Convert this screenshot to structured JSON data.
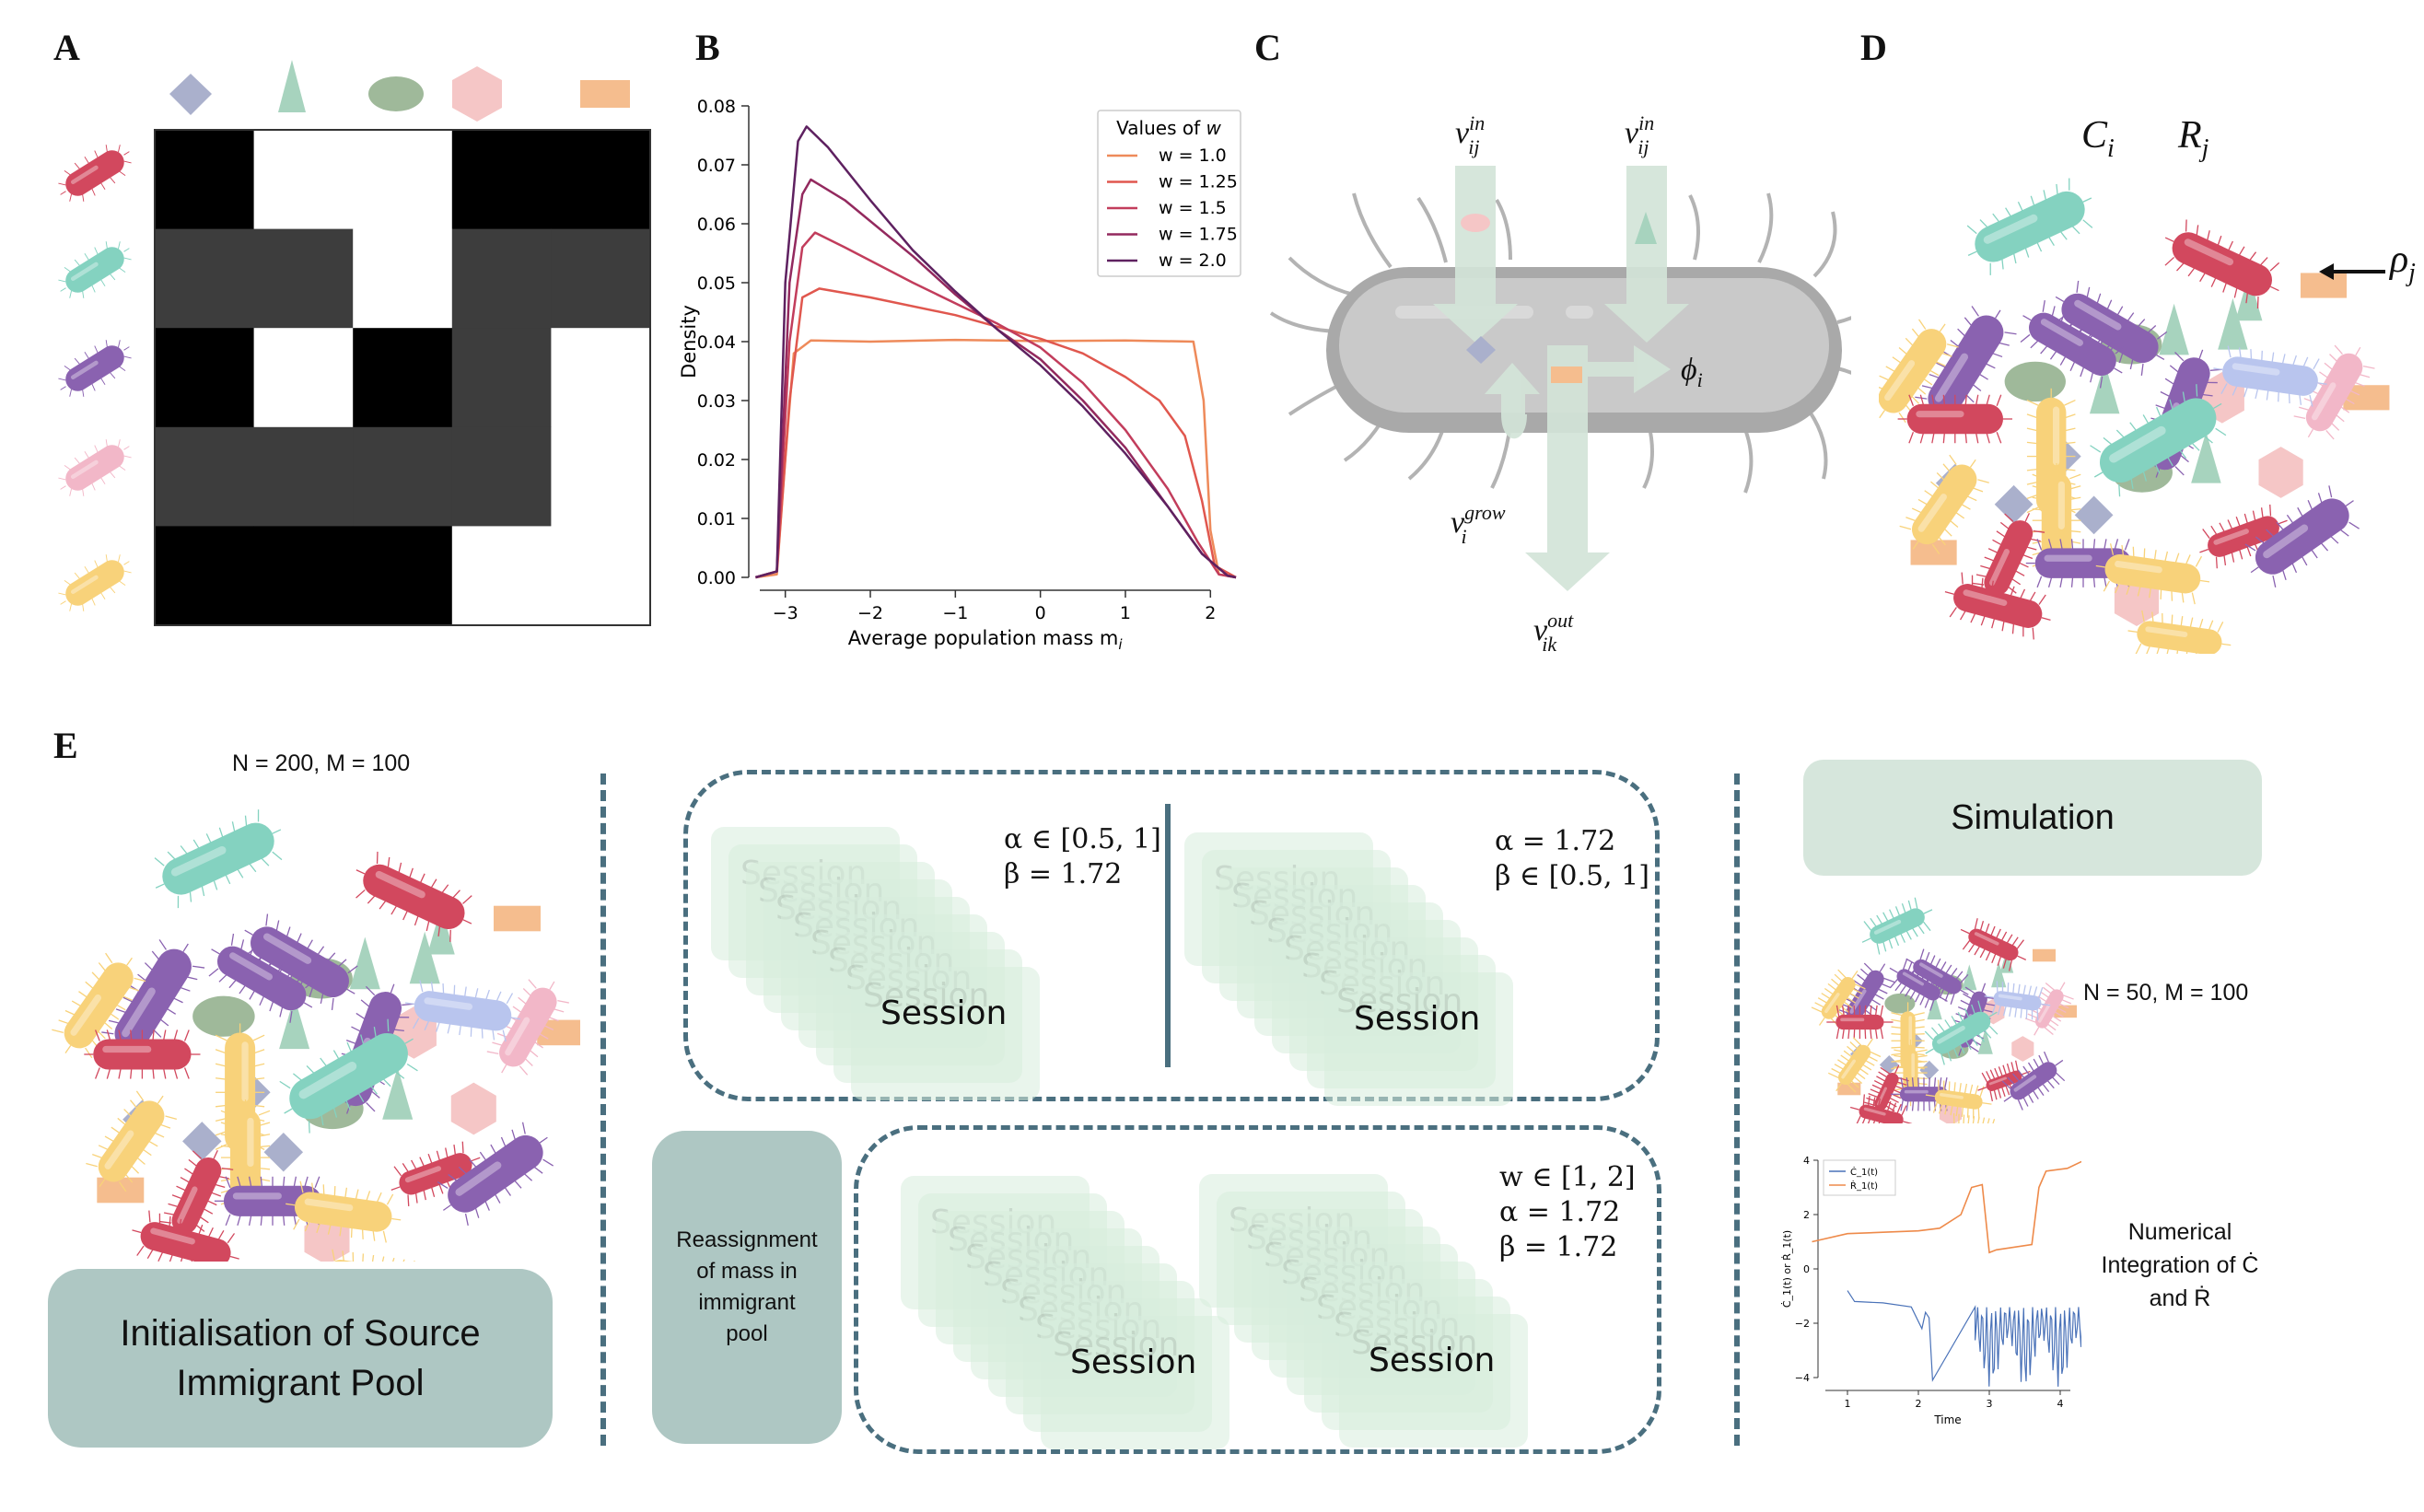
{
  "panels": {
    "A": "A",
    "B": "B",
    "C": "C",
    "D": "D",
    "E": "E"
  },
  "colors": {
    "red": "#d2485e",
    "teal": "#84d2c0",
    "purple": "#8a62b0",
    "pink": "#f2b7c8",
    "yellow": "#f8d27a",
    "lavender": "#b9c5ee",
    "diamond": "#aab0cc",
    "triangle": "#a7d3be",
    "ellipse": "#9fb99a",
    "hexagon": "#f5c6c6",
    "rect": "#f5bd8e",
    "box_green": "#d6e6dc",
    "box_teal": "#aec7c3",
    "dash": "#4a6f7f"
  },
  "panel_a": {
    "row_icons": [
      "red-bacterium-icon",
      "teal-bacterium-icon",
      "purple-bacterium-icon",
      "pink-bacterium-icon",
      "yellow-bacterium-icon"
    ],
    "col_icons": [
      "diamond-icon",
      "triangle-icon",
      "ellipse-icon",
      "hexagon-icon",
      "rectangle-icon"
    ],
    "matrix": [
      [
        0,
        1,
        1,
        0,
        0
      ],
      [
        0.3,
        0.3,
        1,
        0.3,
        0.3
      ],
      [
        0,
        1,
        0,
        0.3,
        1
      ],
      [
        0.3,
        0.3,
        0.3,
        0.3,
        1
      ],
      [
        0,
        0,
        0,
        1,
        1
      ]
    ],
    "matrix_legend": "0 = black, 0.3 = dark grey, 1 = white"
  },
  "chart_data": {
    "type": "line",
    "title": "",
    "xlabel": "Average population mass m",
    "xlabel_subscript": "i",
    "ylabel": "Density",
    "xlim": [
      -3.3,
      2.3
    ],
    "ylim": [
      0,
      0.08
    ],
    "xticks": [
      "−3",
      "−2",
      "−1",
      "0",
      "1",
      "2"
    ],
    "yticks": [
      "0.00",
      "0.01",
      "0.02",
      "0.03",
      "0.04",
      "0.05",
      "0.06",
      "0.07",
      "0.08"
    ],
    "legend_title": "Values of w",
    "legend_position": "top-right",
    "series": [
      {
        "name": "w = 1.0",
        "color": "#ee8a5a",
        "points": [
          [
            -3.35,
            0
          ],
          [
            -3.1,
            0.0005
          ],
          [
            -3.0,
            0.02
          ],
          [
            -2.9,
            0.038
          ],
          [
            -2.7,
            0.0402
          ],
          [
            -2,
            0.04
          ],
          [
            -1,
            0.0403
          ],
          [
            0,
            0.0401
          ],
          [
            1,
            0.0402
          ],
          [
            1.8,
            0.04
          ],
          [
            1.92,
            0.03
          ],
          [
            2.0,
            0.008
          ],
          [
            2.1,
            0.0005
          ],
          [
            2.3,
            0
          ]
        ]
      },
      {
        "name": "w = 1.25",
        "color": "#e0574e",
        "points": [
          [
            -3.35,
            0
          ],
          [
            -3.1,
            0.001
          ],
          [
            -2.95,
            0.03
          ],
          [
            -2.8,
            0.0475
          ],
          [
            -2.6,
            0.049
          ],
          [
            -2,
            0.0475
          ],
          [
            -1,
            0.0445
          ],
          [
            0,
            0.0405
          ],
          [
            0.5,
            0.038
          ],
          [
            1,
            0.034
          ],
          [
            1.4,
            0.03
          ],
          [
            1.7,
            0.024
          ],
          [
            1.9,
            0.013
          ],
          [
            2.05,
            0.002
          ],
          [
            2.3,
            0
          ]
        ]
      },
      {
        "name": "w = 1.5",
        "color": "#c23d5c",
        "points": [
          [
            -3.35,
            0
          ],
          [
            -3.1,
            0.001
          ],
          [
            -2.95,
            0.04
          ],
          [
            -2.8,
            0.056
          ],
          [
            -2.65,
            0.0585
          ],
          [
            -2.3,
            0.056
          ],
          [
            -1.5,
            0.05
          ],
          [
            -1,
            0.0465
          ],
          [
            -0.5,
            0.043
          ],
          [
            0,
            0.039
          ],
          [
            0.5,
            0.033
          ],
          [
            1,
            0.025
          ],
          [
            1.5,
            0.015
          ],
          [
            1.85,
            0.006
          ],
          [
            2.1,
            0.0005
          ],
          [
            2.3,
            0
          ]
        ]
      },
      {
        "name": "w = 1.75",
        "color": "#93295e",
        "points": [
          [
            -3.35,
            0
          ],
          [
            -3.1,
            0.001
          ],
          [
            -2.95,
            0.05
          ],
          [
            -2.8,
            0.065
          ],
          [
            -2.7,
            0.0675
          ],
          [
            -2.3,
            0.064
          ],
          [
            -1.5,
            0.0545
          ],
          [
            -1,
            0.048
          ],
          [
            -0.5,
            0.042
          ],
          [
            0,
            0.037
          ],
          [
            0.5,
            0.03
          ],
          [
            1,
            0.022
          ],
          [
            1.5,
            0.012
          ],
          [
            1.9,
            0.004
          ],
          [
            2.2,
            0.0003
          ],
          [
            2.3,
            0
          ]
        ]
      },
      {
        "name": "w = 2.0",
        "color": "#5e2160",
        "points": [
          [
            -3.35,
            0
          ],
          [
            -3.1,
            0.001
          ],
          [
            -3.0,
            0.05
          ],
          [
            -2.85,
            0.074
          ],
          [
            -2.75,
            0.0765
          ],
          [
            -2.5,
            0.073
          ],
          [
            -2,
            0.064
          ],
          [
            -1.5,
            0.0555
          ],
          [
            -1,
            0.0485
          ],
          [
            -0.5,
            0.042
          ],
          [
            0,
            0.036
          ],
          [
            0.5,
            0.029
          ],
          [
            1,
            0.021
          ],
          [
            1.5,
            0.012
          ],
          [
            1.9,
            0.004
          ],
          [
            2.2,
            0.0003
          ],
          [
            2.3,
            0
          ]
        ]
      }
    ]
  },
  "panel_c": {
    "v_in_1": {
      "base": "v",
      "sup": "in",
      "sub": "ij"
    },
    "v_in_2": {
      "base": "v",
      "sup": "in",
      "sub": "ij"
    },
    "phi": {
      "base": "ϕ",
      "sub": "i"
    },
    "v_grow": {
      "base": "v",
      "sup": "grow",
      "sub": "i"
    },
    "v_out": {
      "base": "v",
      "sup": "out",
      "sub": "ik"
    }
  },
  "panel_d": {
    "c_label": {
      "base": "C",
      "sub": "i"
    },
    "r_label": {
      "base": "R",
      "sub": "j"
    },
    "rho_label": {
      "base": "ρ",
      "sub": "j"
    }
  },
  "panel_e": {
    "pool_params": "N = 200, M = 100",
    "pool_box": [
      "Initialisation of Source",
      "Immigrant Pool"
    ],
    "reassign_box": [
      "Reassignment",
      "of mass in",
      "immigrant",
      "pool"
    ],
    "session_label": "Session",
    "eq_top_left": [
      "α ∈ [0.5, 1]",
      "β = 1.72"
    ],
    "eq_top_right": [
      "α = 1.72",
      "β ∈ [0.5, 1]"
    ],
    "eq_bottom": [
      "w ∈ [1, 2]",
      "α = 1.72",
      "β = 1.72"
    ],
    "simulation_label": "Simulation",
    "sim_params": "N = 50, M = 100",
    "numerical_text": [
      "Numerical",
      "Integration of Ċ",
      "and Ṙ"
    ]
  },
  "mini_chart": {
    "xlabel": "Time",
    "ylabel": "Ċ_1(t) or Ṙ_1(t)",
    "legend": [
      "Ċ_1(t)",
      "Ṙ_1(t)"
    ],
    "yticks": [
      "4",
      "2",
      "0",
      "−2",
      "−4"
    ],
    "xticks": [
      "1",
      "2",
      "3",
      "4"
    ]
  }
}
